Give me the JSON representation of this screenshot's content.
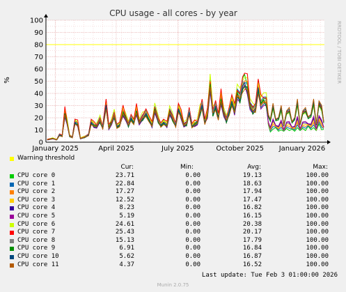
{
  "chart_data": {
    "type": "line",
    "title": "CPU usage - all cores - by year",
    "ylabel": "%",
    "side_label": "RRDTOOL / TOBI OETIKER",
    "ylim": [
      0,
      100
    ],
    "yticks": [
      0,
      10,
      20,
      30,
      40,
      50,
      60,
      70,
      80,
      90,
      100
    ],
    "grid": true,
    "legend_placement": "bottom",
    "xlabels": [
      {
        "label": "January 2025",
        "date": "2025-01-01"
      },
      {
        "label": "April 2025",
        "date": "2025-04-01"
      },
      {
        "label": "July 2025",
        "date": "2025-07-01"
      },
      {
        "label": "October 2025",
        "date": "2025-10-01"
      },
      {
        "label": "January 2026",
        "date": "2026-01-01"
      }
    ],
    "x_range": [
      "2024-12-18",
      "2026-02-03"
    ],
    "warning": {
      "name": "Warning threshold",
      "value": 80,
      "color": "#ffff00"
    },
    "base_series_approx": [
      [
        "2024-12-20",
        2
      ],
      [
        "2024-12-28",
        3
      ],
      [
        "2025-01-03",
        2
      ],
      [
        "2025-01-07",
        6
      ],
      [
        "2025-01-11",
        5
      ],
      [
        "2025-01-15",
        24
      ],
      [
        "2025-01-18",
        17
      ],
      [
        "2025-01-22",
        5
      ],
      [
        "2025-01-26",
        4
      ],
      [
        "2025-01-30",
        16
      ],
      [
        "2025-02-03",
        15
      ],
      [
        "2025-02-07",
        3
      ],
      [
        "2025-02-13",
        4
      ],
      [
        "2025-02-19",
        6
      ],
      [
        "2025-02-23",
        16
      ],
      [
        "2025-02-27",
        14
      ],
      [
        "2025-03-03",
        13
      ],
      [
        "2025-03-08",
        18
      ],
      [
        "2025-03-12",
        12
      ],
      [
        "2025-03-17",
        30
      ],
      [
        "2025-03-21",
        12
      ],
      [
        "2025-03-25",
        16
      ],
      [
        "2025-03-29",
        22
      ],
      [
        "2025-04-02",
        13
      ],
      [
        "2025-04-06",
        14
      ],
      [
        "2025-04-11",
        25
      ],
      [
        "2025-04-15",
        20
      ],
      [
        "2025-04-19",
        14
      ],
      [
        "2025-04-23",
        20
      ],
      [
        "2025-04-27",
        16
      ],
      [
        "2025-05-01",
        26
      ],
      [
        "2025-05-05",
        16
      ],
      [
        "2025-05-10",
        20
      ],
      [
        "2025-05-15",
        24
      ],
      [
        "2025-05-20",
        18
      ],
      [
        "2025-05-24",
        14
      ],
      [
        "2025-05-28",
        27
      ],
      [
        "2025-06-02",
        18
      ],
      [
        "2025-06-06",
        14
      ],
      [
        "2025-06-10",
        16
      ],
      [
        "2025-06-15",
        14
      ],
      [
        "2025-06-19",
        25
      ],
      [
        "2025-06-23",
        20
      ],
      [
        "2025-06-28",
        14
      ],
      [
        "2025-07-02",
        27
      ],
      [
        "2025-07-06",
        22
      ],
      [
        "2025-07-10",
        14
      ],
      [
        "2025-07-14",
        15
      ],
      [
        "2025-07-18",
        25
      ],
      [
        "2025-07-22",
        13
      ],
      [
        "2025-07-26",
        15
      ],
      [
        "2025-07-30",
        16
      ],
      [
        "2025-08-03",
        25
      ],
      [
        "2025-08-06",
        31
      ],
      [
        "2025-08-10",
        16
      ],
      [
        "2025-08-14",
        23
      ],
      [
        "2025-08-18",
        47
      ],
      [
        "2025-08-22",
        24
      ],
      [
        "2025-08-26",
        30
      ],
      [
        "2025-08-30",
        20
      ],
      [
        "2025-09-03",
        36
      ],
      [
        "2025-09-07",
        24
      ],
      [
        "2025-09-11",
        18
      ],
      [
        "2025-09-15",
        25
      ],
      [
        "2025-09-19",
        33
      ],
      [
        "2025-09-23",
        26
      ],
      [
        "2025-09-27",
        40
      ],
      [
        "2025-10-01",
        36
      ],
      [
        "2025-10-05",
        47
      ],
      [
        "2025-10-08",
        48
      ],
      [
        "2025-10-12",
        46
      ],
      [
        "2025-10-16",
        30
      ],
      [
        "2025-10-20",
        26
      ],
      [
        "2025-10-24",
        28
      ],
      [
        "2025-10-28",
        44
      ],
      [
        "2025-11-01",
        32
      ],
      [
        "2025-11-05",
        34
      ],
      [
        "2025-11-09",
        33
      ],
      [
        "2025-11-12",
        24
      ],
      [
        "2025-11-15",
        14
      ],
      [
        "2025-11-19",
        18
      ],
      [
        "2025-11-23",
        20
      ],
      [
        "2025-11-27",
        15
      ],
      [
        "2025-12-01",
        17
      ],
      [
        "2025-12-05",
        15
      ],
      [
        "2025-12-09",
        19
      ],
      [
        "2025-12-13",
        16
      ],
      [
        "2025-12-17",
        18
      ],
      [
        "2025-12-21",
        15
      ],
      [
        "2025-12-25",
        20
      ],
      [
        "2025-12-29",
        16
      ],
      [
        "2026-01-02",
        19
      ],
      [
        "2026-01-06",
        16
      ],
      [
        "2026-01-10",
        22
      ],
      [
        "2026-01-14",
        17
      ],
      [
        "2026-01-18",
        20
      ],
      [
        "2026-01-22",
        16
      ],
      [
        "2026-01-26",
        25
      ],
      [
        "2026-01-30",
        17
      ],
      [
        "2026-02-02",
        18
      ]
    ],
    "series": [
      {
        "name": "CPU core 0",
        "color": "#00cc00",
        "cur": "23.71",
        "min": "0.00",
        "avg": "19.13",
        "max": "100.00"
      },
      {
        "name": "CPU core 1",
        "color": "#0066b3",
        "cur": "22.84",
        "min": "0.00",
        "avg": "18.63",
        "max": "100.00"
      },
      {
        "name": "CPU core 2",
        "color": "#ff8000",
        "cur": "17.27",
        "min": "0.00",
        "avg": "17.94",
        "max": "100.00"
      },
      {
        "name": "CPU core 3",
        "color": "#ffcc00",
        "cur": "12.52",
        "min": "0.00",
        "avg": "17.47",
        "max": "100.00"
      },
      {
        "name": "CPU core 4",
        "color": "#330099",
        "cur": "8.23",
        "min": "0.00",
        "avg": "16.82",
        "max": "100.00"
      },
      {
        "name": "CPU core 5",
        "color": "#990099",
        "cur": "5.19",
        "min": "0.00",
        "avg": "16.15",
        "max": "100.00"
      },
      {
        "name": "CPU core 6",
        "color": "#ccff00",
        "cur": "24.61",
        "min": "0.00",
        "avg": "20.38",
        "max": "100.00"
      },
      {
        "name": "CPU core 7",
        "color": "#ff0000",
        "cur": "25.43",
        "min": "0.00",
        "avg": "20.17",
        "max": "100.00"
      },
      {
        "name": "CPU core 8",
        "color": "#808080",
        "cur": "15.13",
        "min": "0.00",
        "avg": "17.79",
        "max": "100.00"
      },
      {
        "name": "CPU core 9",
        "color": "#008f00",
        "cur": "6.91",
        "min": "0.00",
        "avg": "16.84",
        "max": "100.00"
      },
      {
        "name": "CPU core 10",
        "color": "#00487d",
        "cur": "5.62",
        "min": "0.00",
        "avg": "16.87",
        "max": "100.00"
      },
      {
        "name": "CPU core 11",
        "color": "#b35a00",
        "cur": "4.37",
        "min": "0.00",
        "avg": "16.52",
        "max": "100.00"
      }
    ]
  },
  "legend_headers": {
    "cur": "Cur:",
    "min": "Min:",
    "avg": "Avg:",
    "max": "Max:"
  },
  "footer": {
    "last_update": "Last update: Tue Feb  3 01:00:00 2026",
    "generator": "Munin 2.0.75"
  }
}
